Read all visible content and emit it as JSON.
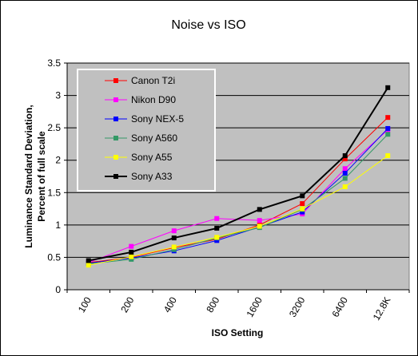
{
  "chart_data": {
    "type": "line",
    "title": "Noise vs ISO",
    "xlabel": "ISO Setting",
    "ylabel": "Luminance Standard Deviation,",
    "ylabel_line2": "Percent of full scale",
    "categories": [
      "100",
      "200",
      "400",
      "800",
      "1600",
      "3200",
      "6400",
      "12.8K"
    ],
    "ylim": [
      0,
      3.5
    ],
    "yticks": [
      "0",
      "0.5",
      "1",
      "1.5",
      "2",
      "2.5",
      "3",
      "3.5"
    ],
    "ytick_values": [
      0,
      0.5,
      1,
      1.5,
      2,
      2.5,
      3,
      3.5
    ],
    "grid": true,
    "legend_position": "top-left",
    "series": [
      {
        "name": "Canon T2i",
        "color": "#ff0000",
        "values": [
          0.42,
          0.5,
          0.65,
          0.78,
          1.0,
          1.33,
          2.02,
          2.66
        ]
      },
      {
        "name": "Nikon D90",
        "color": "#ff00ff",
        "values": [
          0.42,
          0.67,
          0.91,
          1.1,
          1.07,
          1.17,
          1.87,
          2.47
        ]
      },
      {
        "name": "Sony NEX-5",
        "color": "#0000ff",
        "values": [
          0.41,
          0.49,
          0.6,
          0.76,
          0.97,
          1.2,
          1.8,
          2.49
        ]
      },
      {
        "name": "Sony A560",
        "color": "#339966",
        "values": [
          0.4,
          0.47,
          0.62,
          0.8,
          0.96,
          1.24,
          1.72,
          2.4
        ]
      },
      {
        "name": "Sony A55",
        "color": "#ffff00",
        "values": [
          0.38,
          0.51,
          0.66,
          0.81,
          0.98,
          1.25,
          1.59,
          2.07
        ]
      },
      {
        "name": "Sony A33",
        "color": "#000000",
        "values": [
          0.45,
          0.58,
          0.8,
          0.95,
          1.24,
          1.45,
          2.07,
          3.12
        ]
      }
    ]
  }
}
